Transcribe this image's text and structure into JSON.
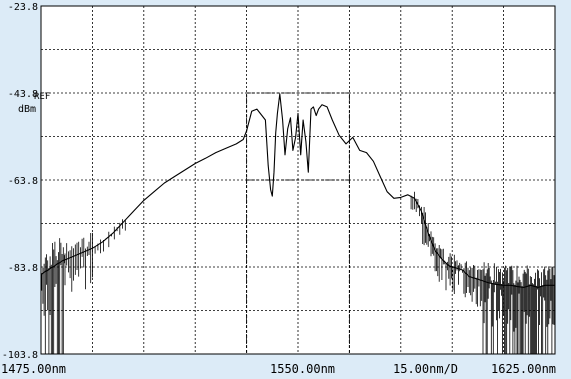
{
  "chart_data": {
    "type": "line",
    "y_unit": "dBm",
    "ref_label": "REF",
    "ref_level": -43.8,
    "y_ticks": [
      "-23.8",
      "-43.8",
      "-63.8",
      "-83.8",
      "-103.8"
    ],
    "ylim": [
      -103.8,
      -23.8
    ],
    "xlim": [
      1475.0,
      1625.0
    ],
    "x_start_label": "1475.00nm",
    "x_center_label": "1550.00nm",
    "x_scale_label": "15.00nm/D",
    "x_end_label": "1625.00nm",
    "grid": true,
    "marker_box": {
      "x": [
        1535.0,
        1565.0
      ],
      "y": [
        -63.8,
        -43.8
      ]
    },
    "trace_color": "#000000",
    "series": [
      {
        "x": [
          1475,
          1478,
          1481,
          1484,
          1487,
          1490,
          1493,
          1496,
          1499,
          1502,
          1505,
          1508,
          1511,
          1514,
          1517,
          1520,
          1523,
          1526,
          1529,
          1532,
          1534,
          1535,
          1536.5,
          1538,
          1539.5,
          1540.5,
          1541.3,
          1542,
          1542.5,
          1543,
          1543.5,
          1544,
          1544.7,
          1545.5,
          1546.2,
          1547,
          1547.8,
          1548.5,
          1549.3,
          1550,
          1550.8,
          1551.5,
          1552.3,
          1553,
          1553.8,
          1554.5,
          1555.3,
          1556,
          1557,
          1558.5,
          1560,
          1562,
          1564,
          1566,
          1568,
          1570,
          1572,
          1574,
          1576,
          1578,
          1580,
          1582,
          1584,
          1586,
          1588,
          1590,
          1592,
          1594,
          1596,
          1598,
          1600,
          1602,
          1604,
          1606,
          1608,
          1610,
          1612,
          1614,
          1616,
          1618,
          1620,
          1622,
          1625
        ],
        "y": [
          -85.5,
          -84.0,
          -82.5,
          -81.5,
          -80.5,
          -79.5,
          -78.0,
          -76.0,
          -73.5,
          -71.0,
          -68.5,
          -66.5,
          -64.5,
          -63.0,
          -61.5,
          -60.0,
          -58.8,
          -57.5,
          -56.5,
          -55.5,
          -54.5,
          -52.5,
          -48.0,
          -47.5,
          -49.0,
          -50.0,
          -60.5,
          -66.0,
          -67.5,
          -62.0,
          -53.0,
          -48.5,
          -44.0,
          -50.0,
          -58.0,
          -52.0,
          -49.5,
          -57.0,
          -54.0,
          -48.5,
          -58.0,
          -50.0,
          -55.0,
          -62.0,
          -47.5,
          -47.0,
          -49.0,
          -47.5,
          -46.5,
          -47.0,
          -50.0,
          -53.5,
          -55.5,
          -54.0,
          -57.0,
          -57.5,
          -59.5,
          -63.0,
          -66.5,
          -68.0,
          -67.8,
          -67.2,
          -68.0,
          -71.0,
          -76.0,
          -80.0,
          -82.0,
          -83.5,
          -84.0,
          -84.5,
          -86.0,
          -86.5,
          -87.0,
          -87.5,
          -87.8,
          -88.0,
          -88.0,
          -88.3,
          -88.5,
          -88.0,
          -88.5,
          -88.0,
          -88.0
        ]
      }
    ]
  }
}
